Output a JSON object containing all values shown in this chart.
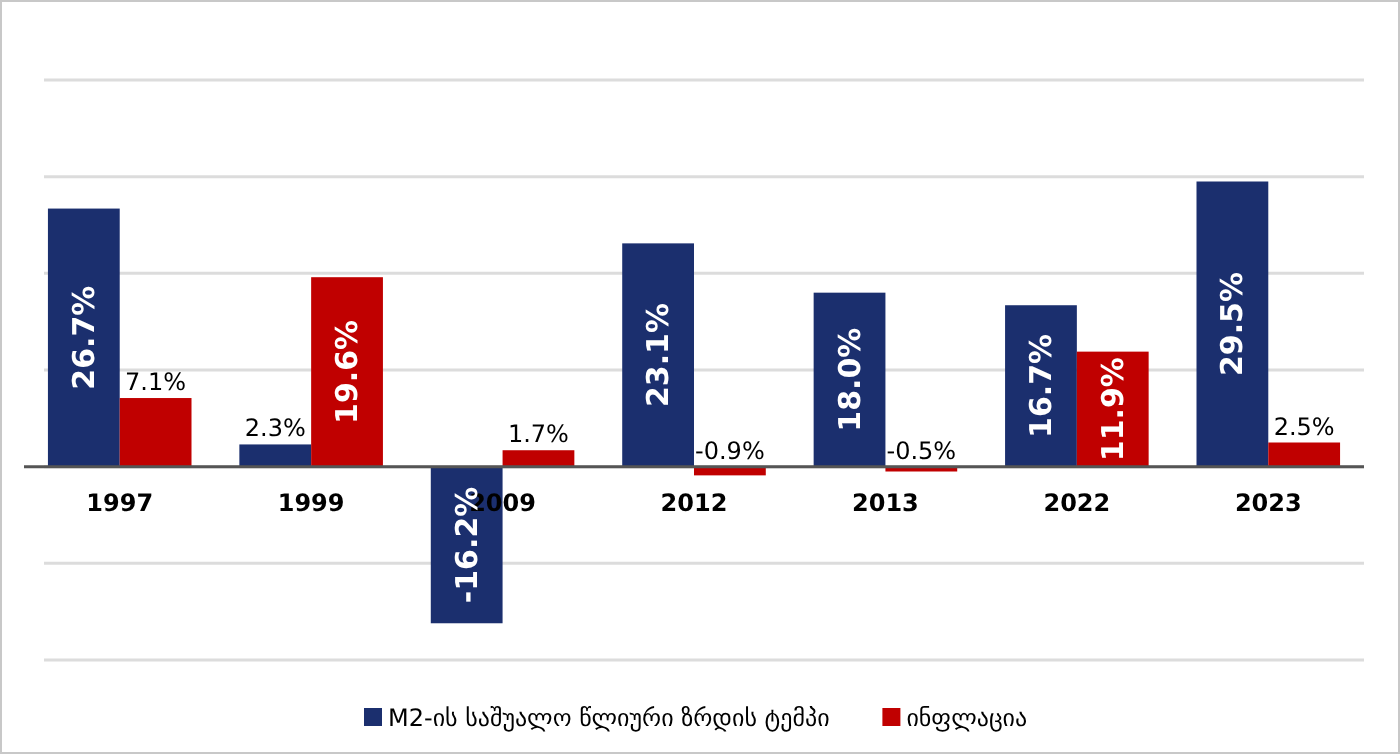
{
  "chart_data": {
    "type": "bar",
    "categories": [
      "1997",
      "1999",
      "2009",
      "2012",
      "2013",
      "2022",
      "2023"
    ],
    "series": [
      {
        "name": "M2-ის საშუალო წლიური ზრდის ტემპი",
        "color": "#1b2f6e",
        "values": [
          26.7,
          2.3,
          -16.2,
          23.1,
          18.0,
          16.7,
          29.5
        ],
        "value_labels": [
          "26.7%",
          "2.3%",
          "-16.2%",
          "23.1%",
          "18.0%",
          "16.7%",
          "29.5%"
        ]
      },
      {
        "name": "ინფლაცია",
        "color": "#c00000",
        "values": [
          7.1,
          19.6,
          1.7,
          -0.9,
          -0.5,
          11.9,
          2.5
        ],
        "value_labels": [
          "7.1%",
          "19.6%",
          "1.7%",
          "-0.9%",
          "-0.5%",
          "11.9%",
          "2.5%"
        ]
      }
    ],
    "ylim": [
      -20,
      40
    ],
    "yticks": [
      {
        "value": -20,
        "label": null
      },
      {
        "value": -10,
        "label": null
      },
      {
        "value": 0,
        "label": null
      },
      {
        "value": 10,
        "label": null
      },
      {
        "value": 20,
        "label": null
      },
      {
        "value": 30,
        "label": null
      },
      {
        "value": 40,
        "label": null
      }
    ],
    "grid": "y",
    "tick_labels": "x",
    "legend": "bottom"
  }
}
